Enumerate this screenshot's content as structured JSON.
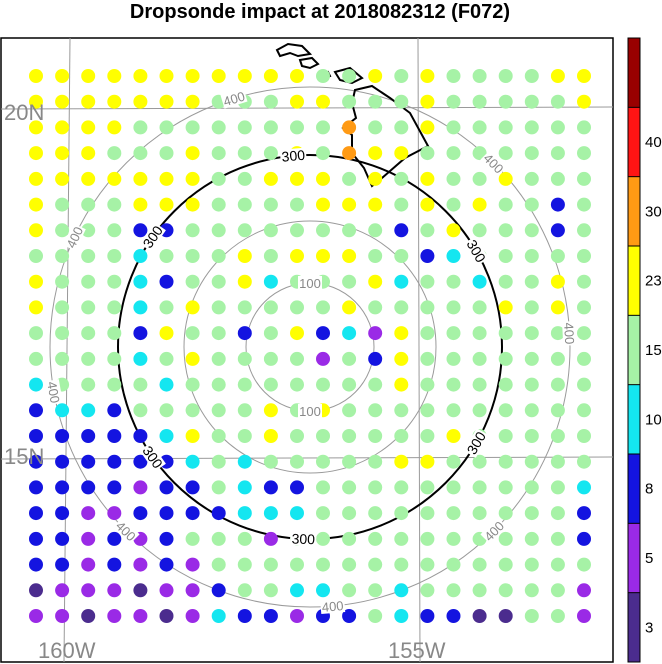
{
  "title": "Dropsonde impact at 2018082312 (F072)",
  "chart_data": {
    "type": "scatter",
    "title": "Dropsonde impact at 2018082312 (F072)",
    "grid": true,
    "lat_labels": [
      "20N",
      "15N"
    ],
    "lon_labels": [
      "160W",
      "155W"
    ],
    "range_rings": [
      {
        "label": "100",
        "highlight": false
      },
      {
        "label": "200",
        "highlight": false
      },
      {
        "label": "300",
        "highlight": true
      },
      {
        "label": "400",
        "highlight": false
      }
    ],
    "colorbar": {
      "position": "right",
      "labels": [
        "3",
        "5",
        "8",
        "10",
        "15",
        "23",
        "30",
        "40"
      ],
      "colors": [
        "#4b2c8e",
        "#9a2ae6",
        "#1414e0",
        "#14e6f0",
        "#a6f2a6",
        "#ffff00",
        "#ff9a14",
        "#ff1414",
        "#990000"
      ]
    },
    "palette": {
      "D": "#4b2c8e",
      "P": "#9a2ae6",
      "B": "#1414e0",
      "C": "#14e6f0",
      "G": "#a6f2a6",
      "Y": "#ffff00",
      "O": "#ff9a14"
    },
    "grid_points": [
      "YYYYYYYYYYYGGYGYGGGGYY",
      "YYYYYYYGGGYYGGGYGGGGGY",
      "YYYYGGGGGGGGOGGYGGGGGG",
      "YYYGGGYGGGYGOYYGGGGGGG",
      "YYYYYYYGGYYYGYGYGGYGGG",
      "YGGGYYYGGGGYYYGYGYGGBG",
      "YGGGBBGGGGGGGGBGYGGGBG",
      "GGGGCGGGYGYYYGGBCGGGGG",
      "YGGGCBGGYCGGGYCGGCGGYG",
      "YGGGCGYGGGGGYGGGGGYGYG",
      "GGGGBYGGBGYBCPYGGGGGGG",
      "GGGGCGYGGGGPGBYGGGGGGG",
      "CGGGGCGGGGGGGGYGGGGGGG",
      "BCCBGGGGGYGYGGGGGGGGGG",
      "BBBBBCYGGYGGGGGGYGGGGG",
      "BBBBBBCGCGGGGGYYGGGGGG",
      "BBBBPBBGCBBGGGGGGGGGGC",
      "BBPPBBBBCCCGGGGGGGGGGB",
      "BBPBPBGGGPGGGGGGGGGGGB",
      "BBPBPBPGGGGGGGGGGGGGGG",
      "DPPPDPPBGGCCGGCGGGGGGP",
      "PPDPPDPCBBPBBGCBBDDGGP"
    ]
  }
}
